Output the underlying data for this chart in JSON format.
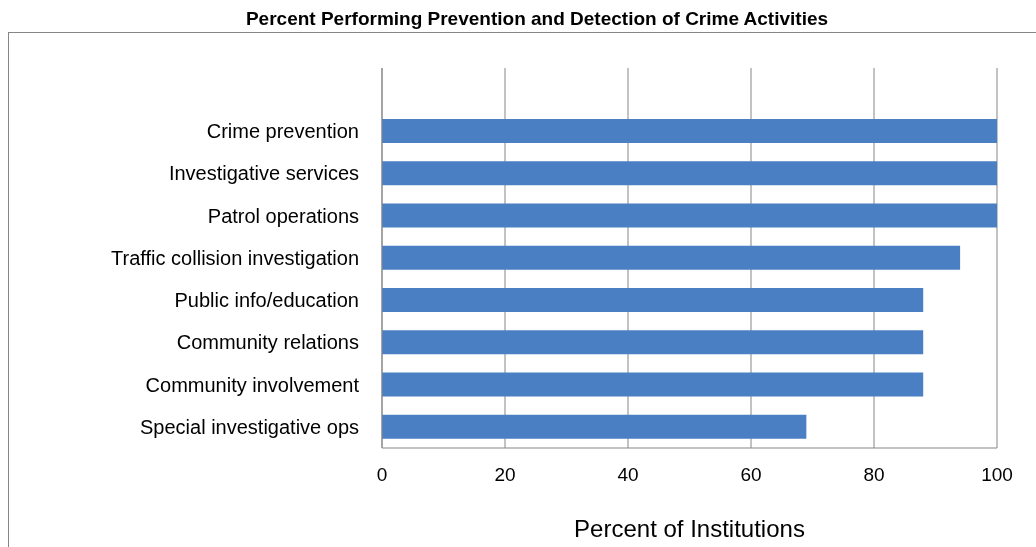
{
  "chart_data": {
    "type": "bar",
    "title": "Percent Performing Prevention and Detection of Crime Activities",
    "xlabel": "Percent of Institutions",
    "orientation": "horizontal",
    "categories": [
      "Crime prevention",
      "Investigative services",
      "Patrol operations",
      "Traffic collision investigation",
      "Public info/education",
      "Community relations",
      "Community involvement",
      "Special investigative ops"
    ],
    "values": [
      100,
      100,
      100,
      94,
      88,
      88,
      88,
      69
    ],
    "color": "#4a7fc4",
    "xlim": [
      0,
      100
    ],
    "xticks": [
      0,
      20,
      40,
      60,
      80,
      100
    ],
    "grid": "x"
  }
}
